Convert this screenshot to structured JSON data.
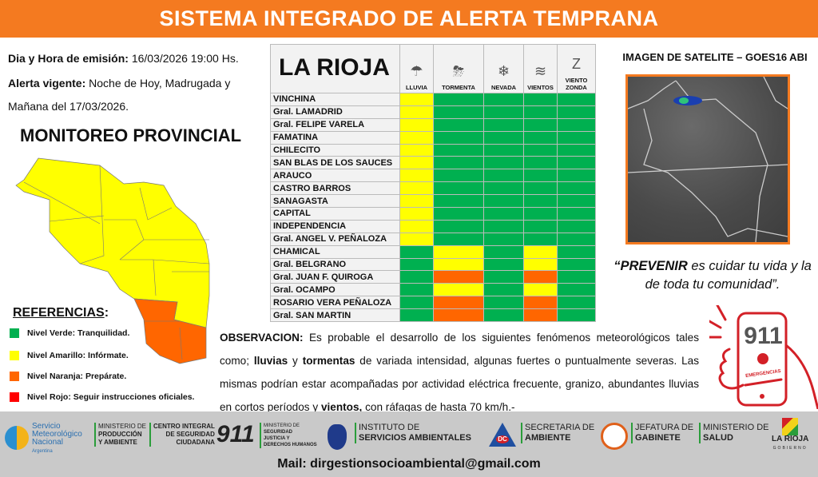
{
  "title": "SISTEMA INTEGRADO DE ALERTA TEMPRANA",
  "emision": {
    "label": "Dia y Hora de emisión:",
    "value": "16/03/2026  19:00 Hs."
  },
  "vigente": {
    "label": "Alerta vigente:",
    "value_line1": "Noche de Hoy, Madrugada y",
    "value_line2": "Mañana del 17/03/2026."
  },
  "monitoreo": "MONITOREO PROVINCIAL",
  "referencias": {
    "title": "REFERENCIAS",
    "colon": ":",
    "items": [
      {
        "label": "Nivel Verde: Tranquilidad.",
        "color": "#00b050"
      },
      {
        "label": "Nivel Amarillo: Infórmate.",
        "color": "#ffff00"
      },
      {
        "label": "Nivel Naranja: Prepárate.",
        "color": "#ff6600"
      },
      {
        "label": "Nivel Rojo: Seguir instrucciones oficiales.",
        "color": "#ff0000"
      }
    ]
  },
  "level_colors": {
    "g": "#00b050",
    "y": "#ffff00",
    "o": "#ff6600",
    "r": "#ff0000"
  },
  "table": {
    "region": "LA RIOJA",
    "columns": [
      {
        "label": "LLUVIA",
        "icon": "rain-cloud-icon",
        "glyph": "☂"
      },
      {
        "label": "TORMENTA",
        "icon": "storm-cloud-icon",
        "glyph": "⛈"
      },
      {
        "label": "NEVADA",
        "icon": "snowflake-icon",
        "glyph": "❄"
      },
      {
        "label": "VIENTOS",
        "icon": "wind-icon",
        "glyph": "≋"
      },
      {
        "label": "VIENTO ZONDA",
        "icon": "zonda-icon",
        "glyph": "Z"
      }
    ],
    "rows": [
      {
        "name": "VINCHINA",
        "levels": [
          "y",
          "g",
          "g",
          "g",
          "g"
        ]
      },
      {
        "name": "Gral. LAMADRID",
        "levels": [
          "y",
          "g",
          "g",
          "g",
          "g"
        ]
      },
      {
        "name": "Gral. FELIPE VARELA",
        "levels": [
          "y",
          "g",
          "g",
          "g",
          "g"
        ]
      },
      {
        "name": "FAMATINA",
        "levels": [
          "y",
          "g",
          "g",
          "g",
          "g"
        ]
      },
      {
        "name": "CHILECITO",
        "levels": [
          "y",
          "g",
          "g",
          "g",
          "g"
        ]
      },
      {
        "name": "SAN BLAS DE LOS SAUCES",
        "levels": [
          "y",
          "g",
          "g",
          "g",
          "g"
        ]
      },
      {
        "name": "ARAUCO",
        "levels": [
          "y",
          "g",
          "g",
          "g",
          "g"
        ]
      },
      {
        "name": "CASTRO BARROS",
        "levels": [
          "y",
          "g",
          "g",
          "g",
          "g"
        ]
      },
      {
        "name": "SANAGASTA",
        "levels": [
          "y",
          "g",
          "g",
          "g",
          "g"
        ]
      },
      {
        "name": "CAPITAL",
        "levels": [
          "y",
          "g",
          "g",
          "g",
          "g"
        ]
      },
      {
        "name": "INDEPENDENCIA",
        "levels": [
          "y",
          "g",
          "g",
          "g",
          "g"
        ]
      },
      {
        "name": "Gral. ANGEL V. PEÑALOZA",
        "levels": [
          "y",
          "g",
          "g",
          "g",
          "g"
        ]
      },
      {
        "name": "CHAMICAL",
        "levels": [
          "g",
          "y",
          "g",
          "y",
          "g"
        ]
      },
      {
        "name": "Gral. BELGRANO",
        "levels": [
          "g",
          "y",
          "g",
          "y",
          "g"
        ]
      },
      {
        "name": "Gral. JUAN F. QUIROGA",
        "levels": [
          "g",
          "o",
          "g",
          "o",
          "g"
        ]
      },
      {
        "name": "Gral. OCAMPO",
        "levels": [
          "g",
          "y",
          "g",
          "y",
          "g"
        ]
      },
      {
        "name": "ROSARIO VERA PEÑALOZA",
        "levels": [
          "g",
          "o",
          "g",
          "o",
          "g"
        ]
      },
      {
        "name": "Gral. SAN MARTIN",
        "levels": [
          "g",
          "o",
          "g",
          "o",
          "g"
        ]
      }
    ]
  },
  "observacion": {
    "label": "OBSERVACION:",
    "t1": " Es probable el desarrollo de los siguientes fenómenos meteorológicos tales como; ",
    "b1": "lluvias",
    "t2": " y ",
    "b2": "tormentas",
    "t3": " de variada intensidad, algunas fuertes o puntualmente severas. Las mismas podrían estar acompañadas por actividad eléctrica frecuente, granizo, abundantes lluvias en cortos períodos y ",
    "b3": "vientos,",
    "t4": " con ráfagas de hasta 70 km/h.-"
  },
  "satellite": {
    "title": "IMAGEN DE SATELITE – GOES16 ABI"
  },
  "quote": {
    "bold": "“PREVENIR",
    "rest": " es cuidar tu vida y la de toda tu comunidad”."
  },
  "emergency": {
    "number": "911",
    "label": "EMERGENCIAS"
  },
  "footer": {
    "smn": {
      "l1": "Servicio",
      "l2": "Meteorológico",
      "l3": "Nacional",
      "l4": "Argentina"
    },
    "produccion": {
      "l1": "MINISTERIO DE",
      "l2": "PRODUCCIÓN",
      "l3": "Y AMBIENTE"
    },
    "centro": {
      "l1": "CENTRO INTEGRAL",
      "l2": "DE SEGURIDAD",
      "l3": "CIUDADANA",
      "num": "911"
    },
    "seguridad": {
      "l1": "MINISTERIO DE",
      "l2": "SEGURIDAD",
      "l3": "JUSTICIA Y",
      "l4": "DERECHOS HUMANOS"
    },
    "instituto": {
      "l1": "INSTITUTO DE",
      "l2": "SERVICIOS AMBIENTALES"
    },
    "dc": "DC",
    "secretaria": {
      "l1": "SECRETARIA DE",
      "l2": "AMBIENTE"
    },
    "jefatura": {
      "l1": "JEFATURA DE",
      "l2": "GABINETE"
    },
    "salud": {
      "l1": "MINISTERIO DE",
      "l2": "SALUD"
    },
    "larioja": {
      "l1": "LA RIOJA",
      "l2": "GOBIERNO"
    },
    "mail": "Mail: dirgestionsocioambiental@gmail.com"
  }
}
